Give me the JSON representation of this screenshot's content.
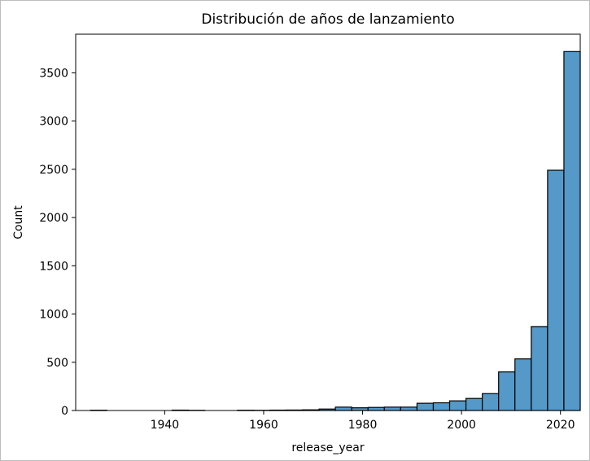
{
  "chart_data": {
    "type": "bar",
    "title": "Distribución de años de lanzamiento",
    "xlabel": "release_year",
    "ylabel": "Count",
    "xlim": [
      1922,
      2024
    ],
    "ylim": [
      0,
      3900
    ],
    "x_ticks": [
      1940,
      1960,
      1980,
      2000,
      2020
    ],
    "y_ticks": [
      0,
      500,
      1000,
      1500,
      2000,
      2500,
      3000,
      3500
    ],
    "bar_color": "#5499c7",
    "edge_color": "#000000",
    "grid": false,
    "bins": [
      {
        "start": 1925,
        "end": 1928.3,
        "value": 3
      },
      {
        "start": 1928.3,
        "end": 1931.6,
        "value": 0
      },
      {
        "start": 1931.6,
        "end": 1934.9,
        "value": 0
      },
      {
        "start": 1934.9,
        "end": 1938.2,
        "value": 0
      },
      {
        "start": 1938.2,
        "end": 1941.5,
        "value": 0
      },
      {
        "start": 1941.5,
        "end": 1944.8,
        "value": 4
      },
      {
        "start": 1944.8,
        "end": 1948.1,
        "value": 2
      },
      {
        "start": 1948.1,
        "end": 1951.4,
        "value": 0
      },
      {
        "start": 1951.4,
        "end": 1954.7,
        "value": 0
      },
      {
        "start": 1954.7,
        "end": 1958.0,
        "value": 3
      },
      {
        "start": 1958.0,
        "end": 1961.3,
        "value": 2
      },
      {
        "start": 1961.3,
        "end": 1964.6,
        "value": 4
      },
      {
        "start": 1964.6,
        "end": 1967.9,
        "value": 5
      },
      {
        "start": 1967.9,
        "end": 1971.2,
        "value": 7
      },
      {
        "start": 1971.2,
        "end": 1974.5,
        "value": 15
      },
      {
        "start": 1974.5,
        "end": 1977.8,
        "value": 35
      },
      {
        "start": 1977.8,
        "end": 1981.1,
        "value": 28
      },
      {
        "start": 1981.1,
        "end": 1984.4,
        "value": 32
      },
      {
        "start": 1984.4,
        "end": 1987.7,
        "value": 35
      },
      {
        "start": 1987.7,
        "end": 1991.0,
        "value": 35
      },
      {
        "start": 1991.0,
        "end": 1994.3,
        "value": 75
      },
      {
        "start": 1994.3,
        "end": 1997.6,
        "value": 80
      },
      {
        "start": 1997.6,
        "end": 2000.9,
        "value": 100
      },
      {
        "start": 2000.9,
        "end": 2004.2,
        "value": 125
      },
      {
        "start": 2004.2,
        "end": 2007.5,
        "value": 175
      },
      {
        "start": 2007.5,
        "end": 2010.8,
        "value": 400
      },
      {
        "start": 2010.8,
        "end": 2014.1,
        "value": 535
      },
      {
        "start": 2014.1,
        "end": 2017.4,
        "value": 870
      },
      {
        "start": 2017.4,
        "end": 2020.7,
        "value": 2490
      },
      {
        "start": 2020.7,
        "end": 2024.0,
        "value": 3720
      }
    ]
  }
}
